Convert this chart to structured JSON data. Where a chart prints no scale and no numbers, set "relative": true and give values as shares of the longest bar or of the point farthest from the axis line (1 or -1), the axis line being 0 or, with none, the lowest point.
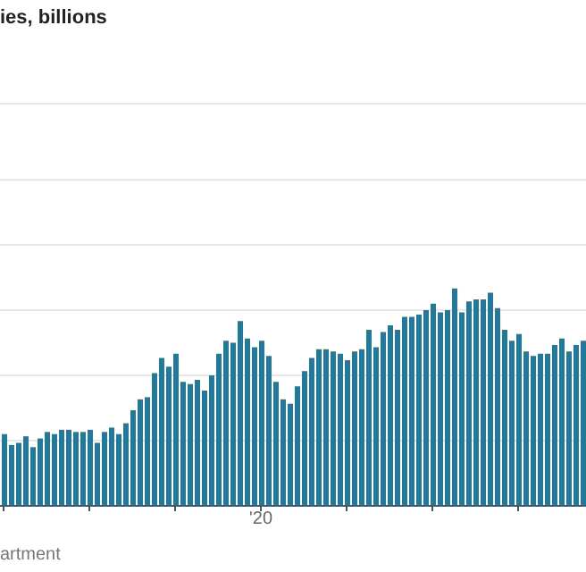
{
  "chart_data": {
    "type": "bar",
    "title": "ies, billions",
    "annotations": [
      "artment",
      "'20"
    ],
    "relative": true,
    "grid": "y",
    "color": "#217a9c",
    "categories": [
      null,
      null,
      null,
      null,
      null,
      null,
      null,
      null,
      null,
      null,
      null,
      null,
      null,
      null,
      null,
      null,
      null,
      null,
      null,
      null,
      null,
      null,
      null,
      null,
      null,
      null,
      null,
      null,
      null,
      null,
      null,
      null,
      null,
      null,
      null,
      null,
      null,
      null,
      null,
      null,
      null,
      null,
      null,
      null,
      null,
      null,
      null,
      null,
      null,
      null,
      null,
      null,
      null,
      null,
      null,
      null,
      null,
      null,
      null,
      null,
      null,
      null,
      null,
      null,
      null,
      null,
      null,
      null,
      null,
      null,
      null,
      null,
      null,
      null,
      null,
      null,
      null,
      null,
      null,
      null,
      null,
      null
    ],
    "values": [
      0.33,
      0.28,
      0.29,
      0.32,
      0.27,
      0.31,
      0.34,
      0.33,
      0.35,
      0.35,
      0.34,
      0.34,
      0.35,
      0.29,
      0.34,
      0.36,
      0.33,
      0.38,
      0.44,
      0.49,
      0.5,
      0.61,
      0.68,
      0.64,
      0.7,
      0.57,
      0.56,
      0.58,
      0.53,
      0.6,
      0.7,
      0.76,
      0.75,
      0.85,
      0.77,
      0.73,
      0.76,
      0.69,
      0.57,
      0.49,
      0.47,
      0.55,
      0.62,
      0.68,
      0.72,
      0.72,
      0.71,
      0.7,
      0.67,
      0.71,
      0.72,
      0.81,
      0.73,
      0.8,
      0.83,
      0.81,
      0.87,
      0.87,
      0.88,
      0.9,
      0.93,
      0.89,
      0.9,
      1,
      0.89,
      0.94,
      0.95,
      0.95,
      0.98,
      0.91,
      0.81,
      0.76,
      0.79,
      0.71,
      0.69,
      0.7,
      0.7,
      0.74,
      0.77,
      0.71,
      0.74,
      0.76
    ]
  }
}
